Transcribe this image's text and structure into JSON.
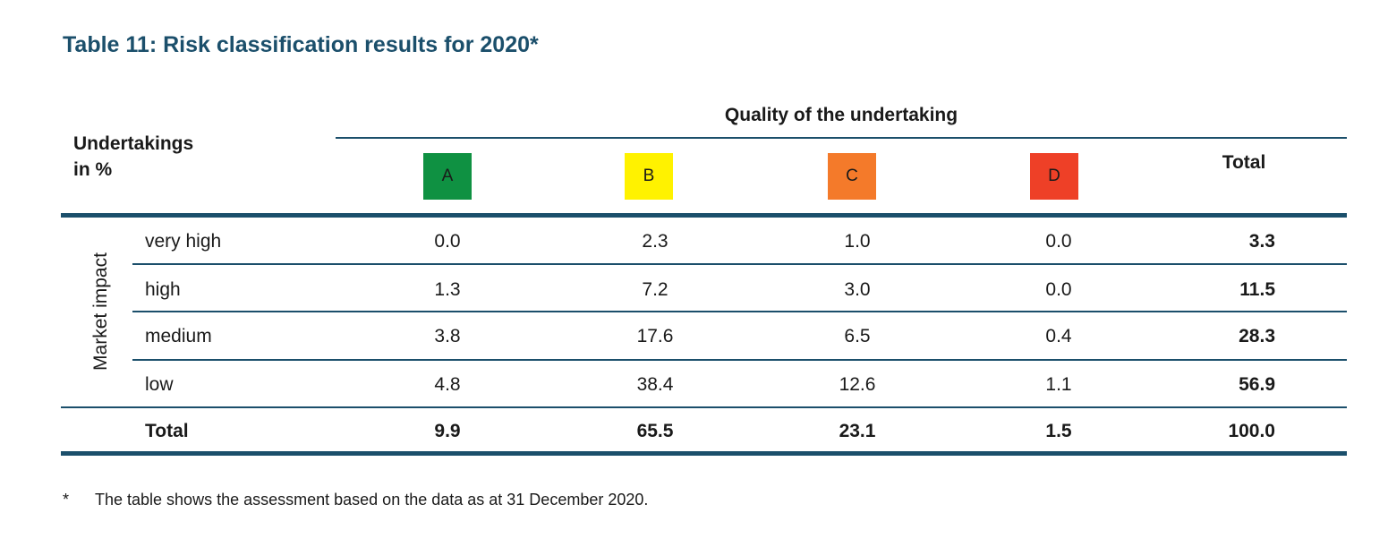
{
  "title": "Table 11: Risk classification results for 2020*",
  "corner_label": [
    "Undertakings",
    "in %"
  ],
  "column_group": "Quality of the undertaking",
  "columns": [
    {
      "label": "A",
      "color": "#0f9142"
    },
    {
      "label": "B",
      "color": "#fff200"
    },
    {
      "label": "C",
      "color": "#f47a2a"
    },
    {
      "label": "D",
      "color": "#ee4027"
    }
  ],
  "total_header": "Total",
  "row_group": "Market impact",
  "rows": [
    {
      "label": "very high",
      "values": [
        "0.0",
        "2.3",
        "1.0",
        "0.0"
      ],
      "total": "3.3"
    },
    {
      "label": "high",
      "values": [
        "1.3",
        "7.2",
        "3.0",
        "0.0"
      ],
      "total": "11.5"
    },
    {
      "label": "medium",
      "values": [
        "3.8",
        "17.6",
        "6.5",
        "0.4"
      ],
      "total": "28.3"
    },
    {
      "label": "low",
      "values": [
        "4.8",
        "38.4",
        "12.6",
        "1.1"
      ],
      "total": "56.9"
    }
  ],
  "totals_row": {
    "label": "Total",
    "values": [
      "9.9",
      "65.5",
      "23.1",
      "1.5"
    ],
    "total": "100.0"
  },
  "footnote": {
    "marker": "*",
    "text": "The table shows the assessment based on the data as at 31 December 2020."
  },
  "colors": {
    "accent": "#1b4f6b"
  }
}
